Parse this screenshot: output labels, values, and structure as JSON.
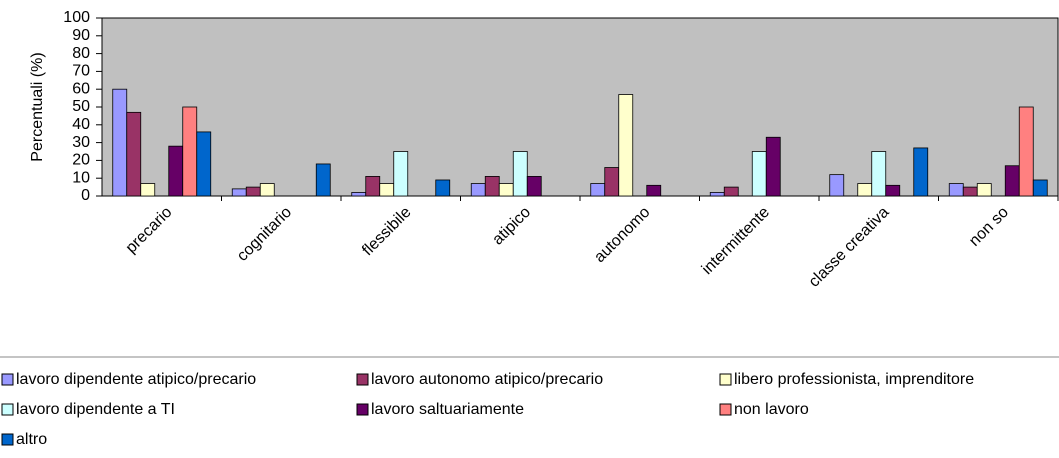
{
  "chart_data": {
    "type": "bar",
    "ylabel": "Percentuali (%)",
    "categories": [
      "precario",
      "cognitario",
      "flessibile",
      "atipico",
      "autonomo",
      "intermittente",
      "classe creativa",
      "non so"
    ],
    "series": [
      {
        "name": "lavoro dipendente atipico/precario",
        "color": "#9999ff",
        "values": [
          60,
          4,
          2,
          7,
          7,
          2,
          12,
          7
        ]
      },
      {
        "name": "lavoro autonomo atipico/precario",
        "color": "#993366",
        "values": [
          47,
          5,
          11,
          11,
          16,
          5,
          0,
          5
        ]
      },
      {
        "name": "libero professionista, imprenditore",
        "color": "#ffffcc",
        "values": [
          7,
          7,
          7,
          7,
          57,
          0,
          7,
          7
        ]
      },
      {
        "name": "lavoro dipendente a TI",
        "color": "#ccffff",
        "values": [
          0,
          0,
          25,
          25,
          0,
          25,
          25,
          0
        ]
      },
      {
        "name": "lavoro saltuariamente",
        "color": "#660066",
        "values": [
          28,
          0,
          0,
          11,
          6,
          33,
          6,
          17
        ]
      },
      {
        "name": "non lavoro",
        "color": "#ff8080",
        "values": [
          50,
          0,
          0,
          0,
          0,
          0,
          0,
          50
        ]
      },
      {
        "name": "altro",
        "color": "#0066cc",
        "values": [
          36,
          18,
          9,
          0,
          0,
          0,
          27,
          9
        ]
      }
    ],
    "ylim": [
      0,
      100
    ],
    "yticks": [
      0,
      10,
      20,
      30,
      40,
      50,
      60,
      70,
      80,
      90,
      100
    ],
    "plot_background": "#c0c0c0",
    "legend": "bottom"
  }
}
